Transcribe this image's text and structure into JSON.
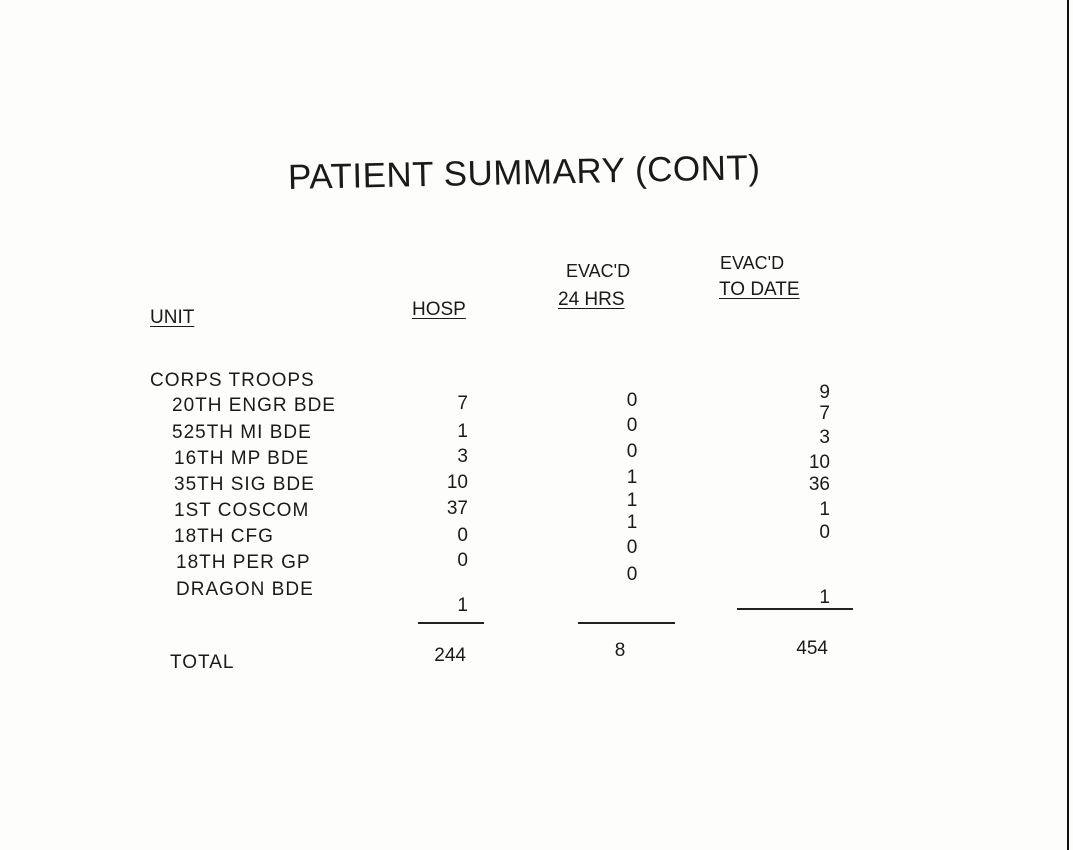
{
  "title": "PATIENT SUMMARY (CONT)",
  "headers": {
    "unit": "UNIT",
    "hosp": "HOSP",
    "evac24_line1": "EVAC'D",
    "evac24_line2": "24 HRS",
    "evacdate_line1": "EVAC'D",
    "evacdate_line2": "TO DATE"
  },
  "group": "CORPS TROOPS",
  "rows": [
    {
      "unit": "20TH ENGR BDE",
      "hosp": "7",
      "evac24": "0",
      "evac_to_date": "9"
    },
    {
      "unit": "525TH MI BDE",
      "hosp": "1",
      "evac24": "0",
      "evac_to_date": "7"
    },
    {
      "unit": "16TH MP BDE",
      "hosp": "3",
      "evac24": "0",
      "evac_to_date": "3"
    },
    {
      "unit": "35TH SIG BDE",
      "hosp": "10",
      "evac24": "1",
      "evac_to_date": "10"
    },
    {
      "unit": "1ST COSCOM",
      "hosp": "37",
      "evac24": "1",
      "evac_to_date": "36"
    },
    {
      "unit": "18TH CFG",
      "hosp": "0",
      "evac24": "1",
      "evac_to_date": "1"
    },
    {
      "unit": "18TH PER GP",
      "hosp": "0",
      "evac24": "0",
      "evac_to_date": "0"
    },
    {
      "unit": "DRAGON BDE",
      "hosp": "1",
      "evac24": "0",
      "evac_to_date": "1"
    }
  ],
  "total": {
    "label": "TOTAL",
    "hosp": "244",
    "evac24": "8",
    "evac_to_date": "454"
  }
}
